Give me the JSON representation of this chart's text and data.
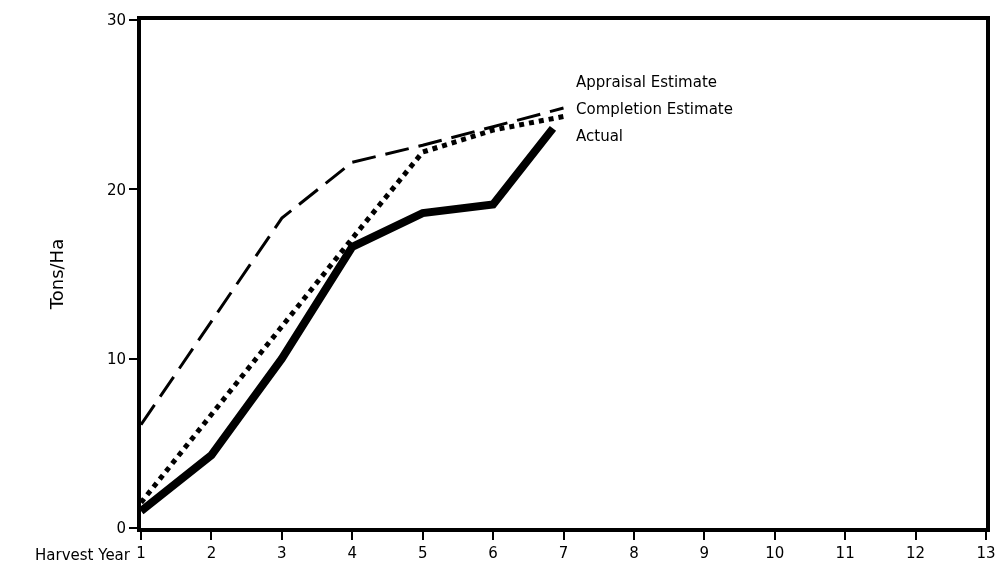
{
  "chart_data": {
    "type": "line",
    "xlabel": "Harvest Year",
    "ylabel": "Tons/Ha",
    "xlim": [
      1,
      13
    ],
    "xticks": [
      1,
      2,
      3,
      4,
      5,
      6,
      7,
      8,
      9,
      10,
      11,
      12,
      13
    ],
    "ylim": [
      0,
      30
    ],
    "yticks": [
      0,
      10,
      20,
      30
    ],
    "grid": false,
    "legend": false,
    "marker": "none",
    "series": [
      {
        "name": "Appraisal Estimate",
        "color": "#000000",
        "line_style": "dashed",
        "x": [
          1,
          3,
          4,
          5,
          6,
          7
        ],
        "values": [
          6.1,
          18.3,
          21.6,
          22.6,
          23.7,
          24.8
        ]
      },
      {
        "name": "Completion Estimate",
        "color": "#000000",
        "line_style": "dotted",
        "x": [
          1,
          4,
          5,
          6,
          7
        ],
        "values": [
          1.5,
          17.1,
          22.2,
          23.5,
          24.3
        ]
      },
      {
        "name": "Actual",
        "color": "#000000",
        "line_style": "solid",
        "x": [
          1,
          2,
          3,
          4,
          5,
          6,
          6.85
        ],
        "values": [
          1.0,
          4.3,
          10.0,
          16.6,
          18.6,
          19.1,
          23.6
        ]
      }
    ]
  }
}
